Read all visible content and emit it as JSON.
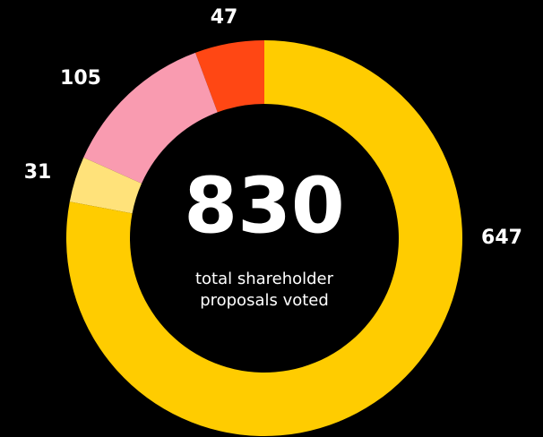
{
  "chart_data": {
    "type": "pie",
    "categories": [
      null,
      null,
      null,
      null
    ],
    "values": [
      647,
      31,
      105,
      47
    ],
    "colors": [
      "#ffcc00",
      "#ffe27a",
      "#f99bb0",
      "#ff4714"
    ],
    "total": 830,
    "center_text": "total shareholder proposals voted"
  }
}
